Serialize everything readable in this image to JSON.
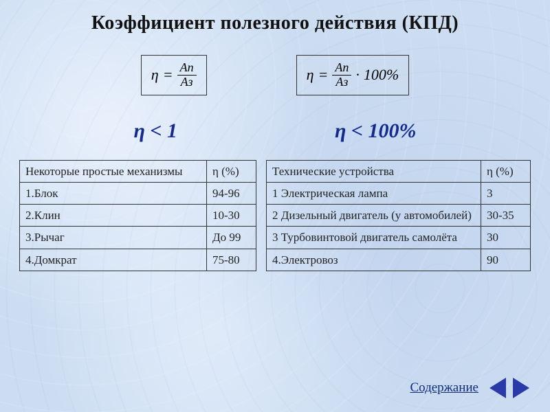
{
  "title": "Коэффициент  полезного  действия (КПД)",
  "formula": {
    "eta_symbol": "η",
    "equals": "=",
    "numerator": "Aп",
    "denominator": "Aз",
    "dot": "·",
    "hundred": "100%"
  },
  "inequalities": {
    "left": "η < 1",
    "right": "η < 100%"
  },
  "colors": {
    "accent": "#142a8c",
    "nav_triangle": "#2a3aa8",
    "border": "#333333",
    "text": "#111111",
    "background_base": "#c8d8ec"
  },
  "table_left": {
    "header_col1": "Некоторые  простые механизмы",
    "header_col2": "η (%)",
    "rows": [
      {
        "name": "1.Блок",
        "value": "94-96"
      },
      {
        "name": "2.Клин",
        "value": "10-30"
      },
      {
        "name": "3.Рычаг",
        "value": "До 99"
      },
      {
        "name": "4.Домкрат",
        "value": "75-80"
      }
    ]
  },
  "table_right": {
    "header_col1": "Технические  устройства",
    "header_col2": "η (%)",
    "rows": [
      {
        "name": "1 Электрическая лампа",
        "value": "3"
      },
      {
        "name": "2 Дизельный  двигатель (у автомобилей)",
        "value": "30-35"
      },
      {
        "name": "3 Турбовинтовой двигатель самолёта",
        "value": "30"
      },
      {
        "name": "4.Электровоз",
        "value": "90"
      }
    ]
  },
  "nav": {
    "contents_label": "Содержание"
  }
}
